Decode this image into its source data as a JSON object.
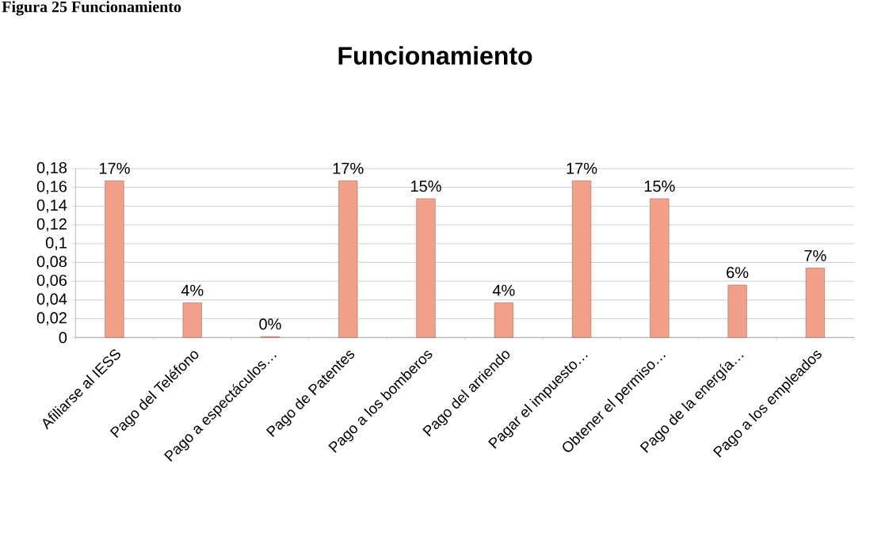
{
  "chart_data": {
    "type": "bar",
    "title": "Funcionamiento",
    "annotations": [
      "Figura 25 Funcionamiento"
    ],
    "categories": [
      "Afiliarse al IESS",
      "Pago del Teléfono",
      "Pago a espectáculos…",
      "Pago de Patentes",
      "Pago a los bomberos",
      "Pago del arriendo",
      "Pagar el impuesto…",
      "Obtener el permiso…",
      "Pago de la energía…",
      "Pago a los empleados"
    ],
    "values": [
      0.167,
      0.037,
      0.001,
      0.167,
      0.148,
      0.037,
      0.167,
      0.148,
      0.056,
      0.074
    ],
    "value_labels": [
      "17%",
      "4%",
      "0%",
      "17%",
      "15%",
      "4%",
      "17%",
      "15%",
      "6%",
      "7%"
    ],
    "color": "#f2a08a",
    "ylim": [
      0,
      0.18
    ],
    "yticks": [
      0,
      {
        "value": 0.02,
        "label": "0,02"
      },
      {
        "value": 0.04,
        "label": "0,04"
      },
      {
        "value": 0.06,
        "label": "0,06"
      },
      {
        "value": 0.08,
        "label": "0,08"
      },
      {
        "value": 0.1,
        "label": "0,1"
      },
      {
        "value": 0.12,
        "label": "0,12"
      },
      {
        "value": 0.14,
        "label": "0,14"
      },
      {
        "value": 0.16,
        "label": "0,16"
      },
      {
        "value": 0.18,
        "label": "0,18"
      }
    ],
    "grid": "y"
  }
}
